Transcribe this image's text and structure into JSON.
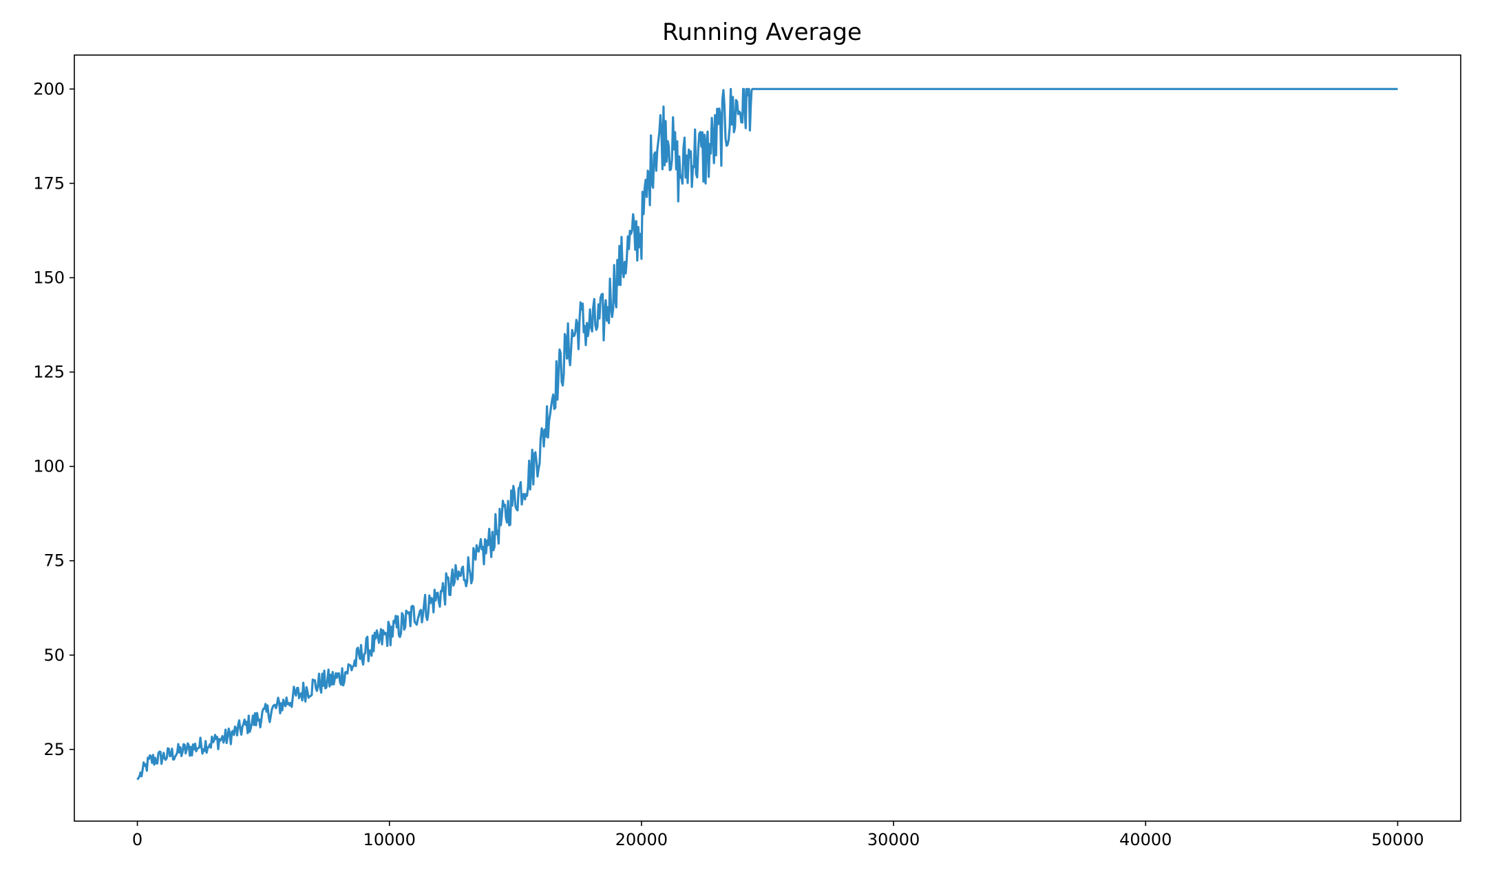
{
  "chart_data": {
    "type": "line",
    "title": "Running Average",
    "xlabel": "",
    "ylabel": "",
    "xlim": [
      -2500,
      52500
    ],
    "ylim": [
      6,
      209
    ],
    "xticks": [
      0,
      10000,
      20000,
      30000,
      40000,
      50000
    ],
    "xtick_labels": [
      "0",
      "10000",
      "20000",
      "30000",
      "40000",
      "50000"
    ],
    "yticks": [
      25,
      50,
      75,
      100,
      125,
      150,
      175,
      200
    ],
    "ytick_labels": [
      "25",
      "50",
      "75",
      "100",
      "125",
      "150",
      "175",
      "200"
    ],
    "grid": false,
    "legend": "none",
    "line_color": "#2e8ac4",
    "series": [
      {
        "x": [
          0,
          500,
          1000,
          1500,
          2000,
          2500,
          3000,
          3500,
          4000,
          4500,
          5000,
          5500,
          6000,
          6500,
          7000,
          7500,
          8000,
          8500,
          9000,
          9500,
          10000,
          10500,
          11000,
          11500,
          12000,
          12500,
          13000,
          13500,
          14000,
          14500,
          15000,
          15500,
          16000,
          16500,
          17000,
          17500,
          18000,
          18500,
          19000,
          19500,
          20000,
          20500,
          21000,
          21500,
          22000,
          22500,
          23000,
          23500,
          24000,
          24400,
          50000
        ],
        "y": [
          17,
          22,
          23,
          24,
          25,
          26,
          27,
          28,
          30,
          32,
          34,
          36,
          38,
          40,
          42,
          43,
          44,
          47,
          51,
          53,
          56,
          58,
          61,
          63,
          66,
          69,
          72,
          75,
          80,
          86,
          92,
          97,
          105,
          120,
          130,
          138,
          137,
          139,
          150,
          158,
          163,
          185,
          190,
          177,
          183,
          182,
          187,
          193,
          196,
          200,
          200
        ]
      }
    ]
  }
}
